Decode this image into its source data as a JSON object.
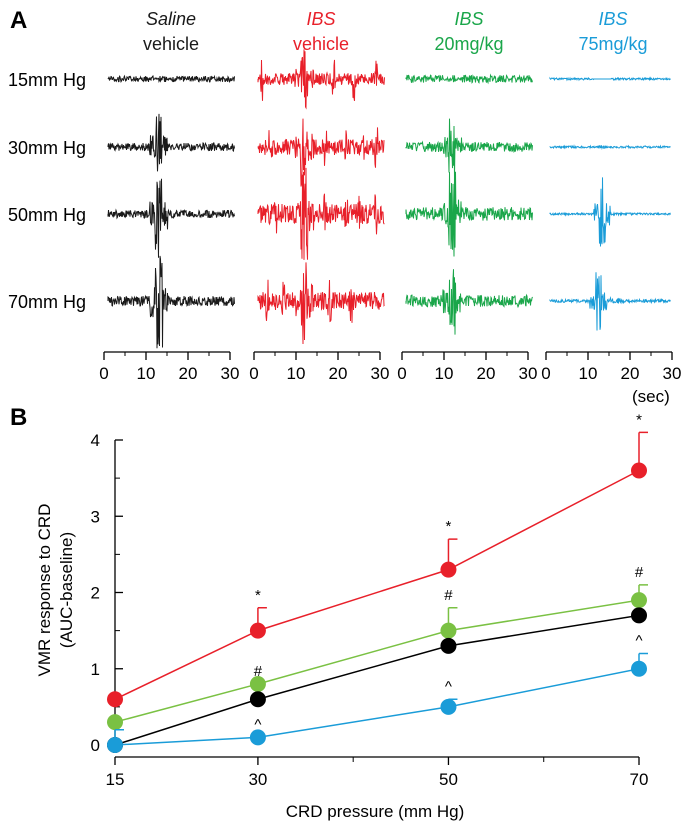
{
  "panels": {
    "a": "A",
    "b": "B"
  },
  "traces": {
    "columns": [
      {
        "line1": "Saline",
        "line1_italic": true,
        "line2": "vehicle",
        "color": "#1a1a1a"
      },
      {
        "line1": "IBS",
        "line1_italic": true,
        "line2": "vehicle",
        "color": "#e8202a"
      },
      {
        "line1": "IBS",
        "line1_italic": true,
        "line2": "20mg/kg",
        "color": "#1aa64a"
      },
      {
        "line1": "IBS",
        "line1_italic": true,
        "line2": "75mg/kg",
        "color": "#1a9cd8"
      }
    ],
    "rows": [
      "15mm Hg",
      "30mm Hg",
      "50mm Hg",
      "70mm Hg"
    ],
    "time_ticks": [
      0,
      10,
      20,
      30
    ],
    "time_unit": "(sec)"
  },
  "chart_data": {
    "type": "line",
    "x": [
      15,
      30,
      50,
      70
    ],
    "xlabel": "CRD pressure (mm Hg)",
    "ylabel_line1": "VMR response to CRD",
    "ylabel_line2": "(AUC-baseline)",
    "xlim": [
      15,
      70
    ],
    "ylim": [
      0,
      4
    ],
    "yticks": [
      0,
      1,
      2,
      3,
      4
    ],
    "grid": false,
    "series": [
      {
        "color": "#e8202a",
        "values": [
          0.6,
          1.5,
          2.3,
          3.6
        ],
        "error": [
          0.0,
          0.3,
          0.4,
          0.5
        ],
        "marks": [
          "",
          "*",
          "*",
          "*"
        ]
      },
      {
        "color": "#7ac143",
        "values": [
          0.3,
          0.8,
          1.5,
          1.9
        ],
        "error": [
          0.0,
          0.0,
          0.3,
          0.2
        ],
        "marks": [
          "",
          "#",
          "#",
          "#"
        ]
      },
      {
        "color": "#000000",
        "values": [
          0.0,
          0.6,
          1.3,
          1.7
        ],
        "error": [
          0.0,
          0.0,
          0.0,
          0.0
        ],
        "marks": [
          "",
          "",
          "",
          ""
        ]
      },
      {
        "color": "#1a9cd8",
        "values": [
          0.0,
          0.1,
          0.5,
          1.0
        ],
        "error": [
          0.2,
          0.0,
          0.1,
          0.2
        ],
        "marks": [
          "",
          "^",
          "^",
          "^"
        ]
      }
    ]
  }
}
